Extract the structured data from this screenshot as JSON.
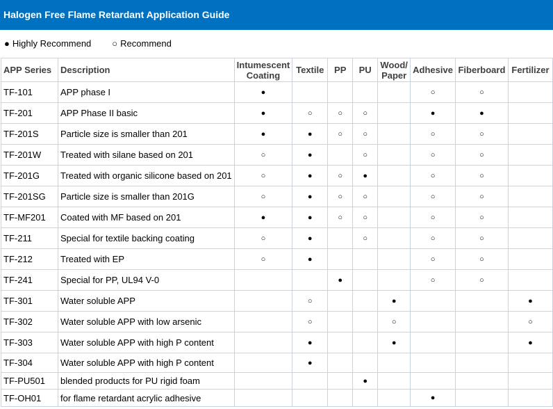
{
  "header": {
    "title": "Halogen Free Flame Retardant Application Guide"
  },
  "legend": [
    {
      "symbol": "●",
      "label": "Highly Recommend"
    },
    {
      "symbol": "○",
      "label": "Recommend"
    }
  ],
  "table": {
    "columns": [
      [
        "APP Series"
      ],
      [
        "Description"
      ],
      [
        "Intumescent",
        "Coating"
      ],
      [
        "Textile"
      ],
      [
        "PP"
      ],
      [
        "PU"
      ],
      [
        "Wood/",
        "Paper"
      ],
      [
        "Adhesive"
      ],
      [
        "Fiberboard"
      ],
      [
        "Fertilizer"
      ]
    ],
    "rows": [
      [
        "TF-101",
        "APP phase I",
        "●",
        null,
        null,
        null,
        null,
        "○",
        "○",
        null
      ],
      [
        "TF-201",
        "APP Phase II basic",
        "●",
        "○",
        "○",
        "○",
        null,
        "●",
        "●",
        null
      ],
      [
        "TF-201S",
        "Particle size is smaller than 201",
        "●",
        "●",
        "○",
        "○",
        null,
        "○",
        "○",
        null
      ],
      [
        "TF-201W",
        "Treated with silane based on 201",
        "○",
        "●",
        null,
        "○",
        null,
        "○",
        "○",
        null
      ],
      [
        "TF-201G",
        "Treated with organic silicone based on 201",
        "○",
        "●",
        "○",
        "●",
        null,
        "○",
        "○",
        null
      ],
      [
        "TF-201SG",
        "Particle size is smaller than 201G",
        "○",
        "●",
        "○",
        "○",
        null,
        "○",
        "○",
        null
      ],
      [
        "TF-MF201",
        "Coated with MF based on 201",
        "●",
        "●",
        "○",
        "○",
        null,
        "○",
        "○",
        null
      ],
      [
        "TF-211",
        "Special for textile backing coating",
        "○",
        "●",
        null,
        "○",
        null,
        "○",
        "○",
        null
      ],
      [
        "TF-212",
        "Treated with EP",
        "○",
        "●",
        null,
        null,
        null,
        "○",
        "○",
        null
      ],
      [
        "TF-241",
        "Special for PP, UL94 V-0",
        null,
        null,
        "●",
        null,
        null,
        "○",
        "○",
        null
      ],
      [
        "TF-301",
        "Water soluble APP",
        null,
        "○",
        null,
        null,
        "●",
        null,
        null,
        "●"
      ],
      [
        "TF-302",
        "Water soluble APP with low arsenic",
        null,
        "○",
        null,
        null,
        "○",
        null,
        null,
        "○"
      ],
      [
        "TF-303",
        "Water soluble APP with high P content",
        null,
        "●",
        null,
        null,
        "●",
        null,
        null,
        "●"
      ],
      [
        "TF-304",
        "Water soluble APP with high P content",
        null,
        "●",
        null,
        null,
        null,
        null,
        null,
        null
      ],
      [
        "TF-PU501",
        "blended products for PU rigid foam",
        null,
        null,
        null,
        "●",
        null,
        null,
        null,
        null
      ],
      [
        "TF-OH01",
        "for flame retardant acrylic adhesive",
        null,
        null,
        null,
        null,
        null,
        "●",
        null,
        null
      ]
    ]
  }
}
